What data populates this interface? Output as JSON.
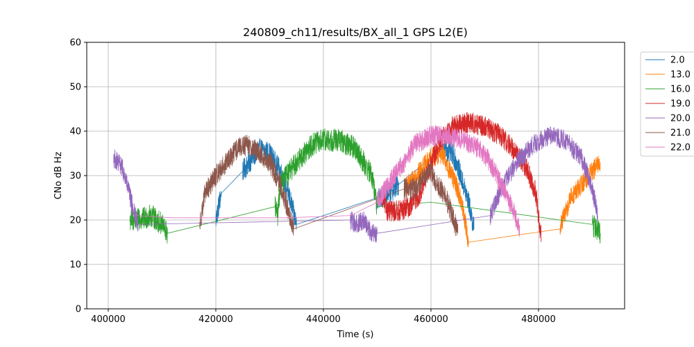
{
  "chart_data": {
    "type": "line",
    "title": "240809_ch11/results/BX_all_1 GPS L2(E)",
    "xlabel": "Time (s)",
    "ylabel": "CNo dB Hz",
    "xlim": [
      396000,
      496000
    ],
    "ylim": [
      0,
      60
    ],
    "xticks": [
      400000,
      420000,
      440000,
      460000,
      480000
    ],
    "xtick_labels": [
      "400000",
      "420000",
      "440000",
      "460000",
      "480000"
    ],
    "yticks": [
      0,
      10,
      20,
      30,
      40,
      50,
      60
    ],
    "ytick_labels": [
      "0",
      "10",
      "20",
      "30",
      "40",
      "50",
      "60"
    ],
    "grid": true,
    "legend_position": "upper-right-outside",
    "series": [
      {
        "name": "2.0",
        "color": "#1f77b4",
        "noise": 2.5,
        "points": [
          [
            420000,
            20
          ],
          [
            421000,
            26
          ],
          [
            425000,
            31
          ],
          [
            428000,
            36
          ],
          [
            430000,
            35
          ],
          [
            432000,
            31
          ],
          [
            433500,
            26
          ],
          [
            435000,
            19
          ],
          [
            450000,
            25
          ],
          [
            451000,
            25
          ],
          [
            454000,
            28
          ],
          [
            458000,
            32
          ],
          [
            462000,
            36
          ],
          [
            464000,
            35
          ],
          [
            465000,
            32
          ],
          [
            467000,
            24
          ],
          [
            468000,
            18
          ]
        ]
      },
      {
        "name": "13.0",
        "color": "#ff7f0e",
        "noise": 2.3,
        "points": [
          [
            455000,
            27
          ],
          [
            458000,
            31
          ],
          [
            460000,
            34
          ],
          [
            462000,
            35
          ],
          [
            463500,
            31
          ],
          [
            465000,
            27
          ],
          [
            466000,
            22
          ],
          [
            467000,
            15
          ],
          [
            484000,
            18
          ],
          [
            484500,
            20
          ],
          [
            486000,
            25
          ],
          [
            488000,
            28
          ],
          [
            490000,
            31
          ],
          [
            491500,
            33
          ]
        ]
      },
      {
        "name": "16.0",
        "color": "#2ca02c",
        "noise": 2.6,
        "points": [
          [
            404000,
            20
          ],
          [
            406000,
            20
          ],
          [
            408000,
            21
          ],
          [
            410000,
            19
          ],
          [
            411000,
            17
          ],
          [
            431000,
            23
          ],
          [
            431500,
            21
          ],
          [
            432000,
            28
          ],
          [
            435000,
            33
          ],
          [
            438000,
            37
          ],
          [
            440000,
            38
          ],
          [
            443000,
            38
          ],
          [
            446000,
            36
          ],
          [
            449000,
            30
          ],
          [
            450000,
            23
          ],
          [
            460000,
            24
          ],
          [
            490000,
            19
          ],
          [
            491500,
            17
          ]
        ]
      },
      {
        "name": "19.0",
        "color": "#d62728",
        "noise": 2.4,
        "points": [
          [
            451000,
            25
          ],
          [
            452000,
            22
          ],
          [
            454000,
            22
          ],
          [
            456000,
            23
          ],
          [
            458000,
            26
          ],
          [
            460000,
            33
          ],
          [
            462000,
            38
          ],
          [
            464000,
            41
          ],
          [
            467000,
            42
          ],
          [
            470000,
            41
          ],
          [
            473000,
            39
          ],
          [
            476000,
            35
          ],
          [
            478000,
            31
          ],
          [
            479500,
            26
          ],
          [
            480500,
            16
          ]
        ]
      },
      {
        "name": "20.0",
        "color": "#9467bd",
        "noise": 2.2,
        "points": [
          [
            401000,
            34
          ],
          [
            402500,
            32
          ],
          [
            403500,
            28
          ],
          [
            404500,
            23
          ],
          [
            405500,
            19
          ],
          [
            445000,
            20
          ],
          [
            446000,
            19
          ],
          [
            447500,
            20
          ],
          [
            449000,
            17
          ],
          [
            450000,
            17
          ],
          [
            471000,
            21
          ],
          [
            473000,
            27
          ],
          [
            476000,
            33
          ],
          [
            479000,
            37
          ],
          [
            482000,
            39
          ],
          [
            485000,
            38
          ],
          [
            488000,
            34
          ],
          [
            490000,
            27
          ],
          [
            491000,
            21
          ]
        ]
      },
      {
        "name": "21.0",
        "color": "#8c564b",
        "noise": 2.4,
        "points": [
          [
            417000,
            19
          ],
          [
            418000,
            26
          ],
          [
            420000,
            30
          ],
          [
            422000,
            33
          ],
          [
            424000,
            36
          ],
          [
            426000,
            37
          ],
          [
            428000,
            35
          ],
          [
            430000,
            33
          ],
          [
            432000,
            28
          ],
          [
            433500,
            22
          ],
          [
            434500,
            18
          ],
          [
            455000,
            27
          ],
          [
            457000,
            27
          ],
          [
            459000,
            30
          ],
          [
            460000,
            31
          ],
          [
            461000,
            28
          ],
          [
            462500,
            26
          ],
          [
            464000,
            21
          ],
          [
            465000,
            17
          ]
        ]
      },
      {
        "name": "22.0",
        "color": "#e377c2",
        "noise": 2.3,
        "points": [
          [
            405000,
            21
          ],
          [
            412000,
            20.5
          ],
          [
            420000,
            20.5
          ],
          [
            433000,
            20.5
          ],
          [
            445000,
            21
          ],
          [
            450000,
            24
          ],
          [
            452000,
            28
          ],
          [
            455000,
            33
          ],
          [
            457000,
            37
          ],
          [
            460000,
            39
          ],
          [
            463000,
            39
          ],
          [
            466000,
            38
          ],
          [
            469000,
            36
          ],
          [
            471000,
            33
          ],
          [
            473000,
            28
          ],
          [
            475000,
            23
          ],
          [
            476500,
            18
          ]
        ]
      }
    ]
  }
}
